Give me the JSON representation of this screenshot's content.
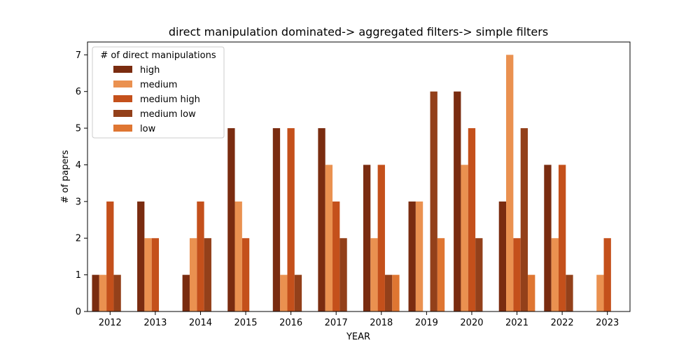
{
  "chart_data": {
    "type": "bar",
    "title": "direct manipulation dominated-> aggregated filters-> simple filters",
    "xlabel": "YEAR",
    "ylabel": "# of papers",
    "ylim": [
      0,
      7.35
    ],
    "yticks": [
      0,
      1,
      2,
      3,
      4,
      5,
      6,
      7
    ],
    "categories": [
      "2012",
      "2013",
      "2014",
      "2015",
      "2016",
      "2017",
      "2018",
      "2019",
      "2020",
      "2021",
      "2022",
      "2023"
    ],
    "legend_title": "# of direct manipulations",
    "legend_position": "top-left",
    "grid": false,
    "series": [
      {
        "name": "high",
        "color": "#7a2c10",
        "values": [
          1,
          3,
          1,
          5,
          5,
          5,
          4,
          3,
          6,
          3,
          4,
          0
        ]
      },
      {
        "name": "medium",
        "color": "#ea9150",
        "values": [
          1,
          2,
          2,
          3,
          1,
          4,
          2,
          3,
          4,
          7,
          2,
          1
        ]
      },
      {
        "name": "medium high",
        "color": "#c4501b",
        "values": [
          3,
          2,
          3,
          2,
          5,
          3,
          4,
          0,
          5,
          2,
          4,
          2
        ]
      },
      {
        "name": "medium low",
        "color": "#93401a",
        "values": [
          1,
          0,
          2,
          0,
          1,
          2,
          1,
          6,
          2,
          5,
          1,
          0
        ]
      },
      {
        "name": "low",
        "color": "#df7632",
        "values": [
          0,
          0,
          0,
          0,
          0,
          0,
          1,
          2,
          0,
          1,
          0,
          0
        ]
      }
    ]
  }
}
